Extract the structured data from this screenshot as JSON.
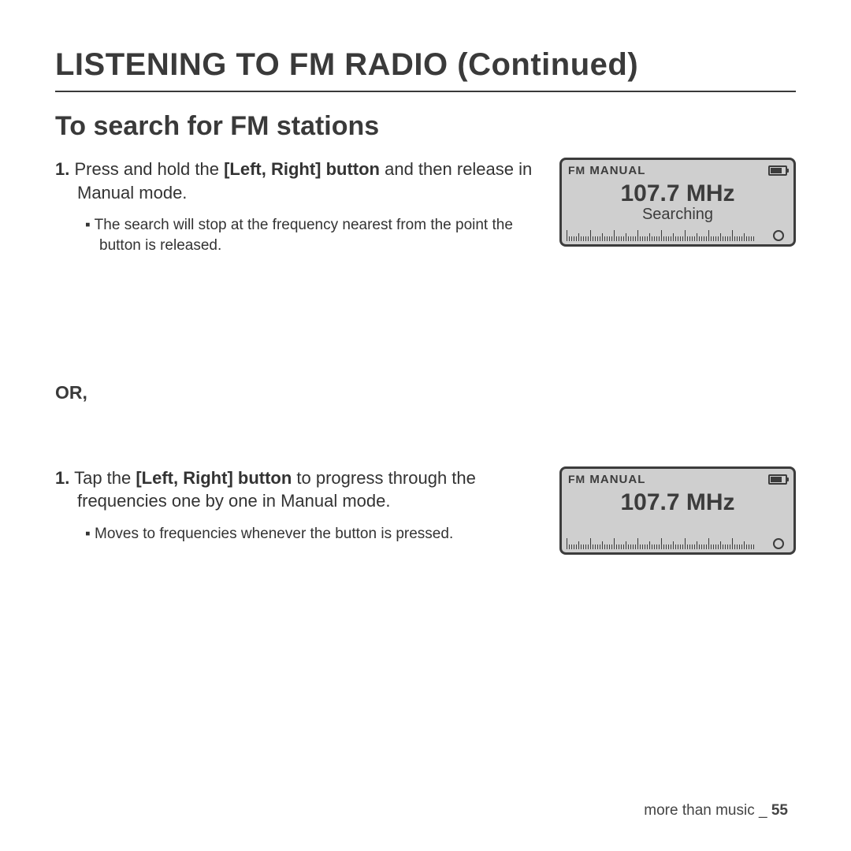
{
  "page_title": "LISTENING TO FM RADIO (Continued)",
  "section_title": "To search for FM stations",
  "block1": {
    "step_num": "1.",
    "step_pre": "Press and hold the ",
    "step_bold": "[Left, Right] button",
    "step_post": " and then release in Manual mode.",
    "bullet": "The search will stop at the frequency nearest from the point the button is released.",
    "device": {
      "mode_label_1": "FM",
      "mode_label_2": "MANUAL",
      "frequency": "107.7 MHz",
      "status": "Searching"
    }
  },
  "or_label": "OR,",
  "block2": {
    "step_num": "1.",
    "step_pre": "Tap the ",
    "step_bold": "[Left, Right] button",
    "step_post": " to progress through the frequencies one by one in Manual mode.",
    "bullet": "Moves to frequencies whenever the button is pressed.",
    "device": {
      "mode_label_1": "FM",
      "mode_label_2": "MANUAL",
      "frequency": "107.7 MHz",
      "status": ""
    }
  },
  "footer": {
    "text": "more than music _ ",
    "page": "55"
  },
  "colors": {
    "text": "#3a3a3a",
    "device_border": "#3c3c3c",
    "device_bg": "#cfcfcf",
    "background": "#ffffff"
  }
}
